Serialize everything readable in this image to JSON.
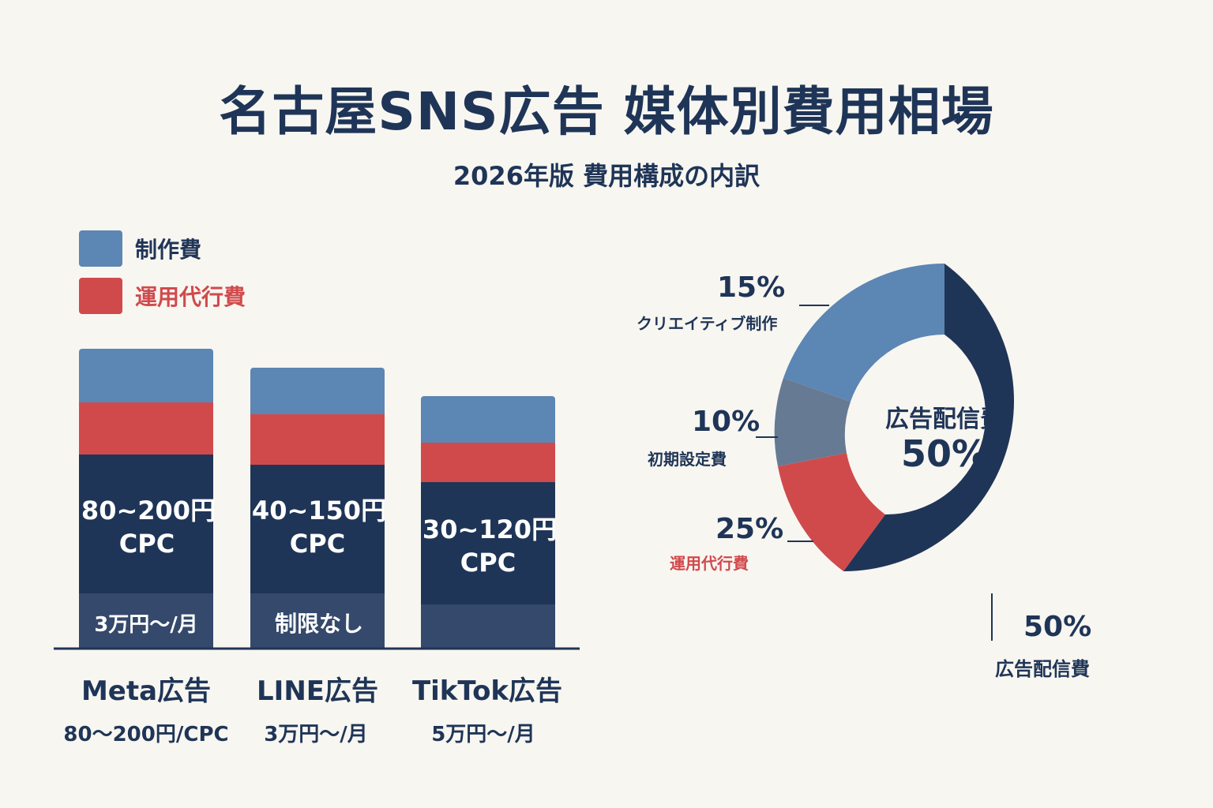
{
  "header": {
    "title": "名古屋SNS広告 媒体別費用相場",
    "subtitle": "2026年版 費用構成の内訳"
  },
  "colors": {
    "production": "#5c86b3",
    "operation": "#d04a4c",
    "media": "#1f3557",
    "base": "#34496b",
    "setup": "#667a93",
    "background": "#f8f6f1"
  },
  "legend": [
    {
      "label": "制作費",
      "color": "#5c86b3",
      "text_color": "#1f3557"
    },
    {
      "label": "運用代行費",
      "color": "#d04a4c",
      "text_color": "#d04a4c"
    }
  ],
  "chart_data": [
    {
      "type": "bar",
      "stacked": true,
      "categories": [
        "Meta広告",
        "LINE広告",
        "TikTok広告"
      ],
      "category_subtitles": [
        "80〜200円/CPC",
        "3万円〜/月",
        "5万円〜/月"
      ],
      "segment_order_bottom_to_top": [
        "base",
        "media",
        "operation",
        "production"
      ],
      "bars": [
        {
          "category": "Meta広告",
          "base_label": "3万円〜/月",
          "media_label": "80~200円",
          "media_unit": "CPC"
        },
        {
          "category": "LINE広告",
          "base_label": "制限なし",
          "media_label": "40~150円",
          "media_unit": "CPC"
        },
        {
          "category": "TikTok広告",
          "base_label": "",
          "media_label": "30~120円",
          "media_unit": "CPC"
        }
      ]
    },
    {
      "type": "pie",
      "donut": true,
      "center_label": "広告配信費",
      "center_value": "50%",
      "slices": [
        {
          "label": "広告配信費",
          "percent_label": "50%",
          "color": "#1f3557",
          "label_color": "#1f3557"
        },
        {
          "label": "運用代行費",
          "percent_label": "25%",
          "color": "#d04a4c",
          "label_color": "#d04a4c"
        },
        {
          "label": "初期設定費",
          "percent_label": "10%",
          "color": "#667a93",
          "label_color": "#1f3557"
        },
        {
          "label": "クリエイティブ制作",
          "percent_label": "15%",
          "color": "#5c86b3",
          "label_color": "#1f3557"
        }
      ]
    }
  ]
}
